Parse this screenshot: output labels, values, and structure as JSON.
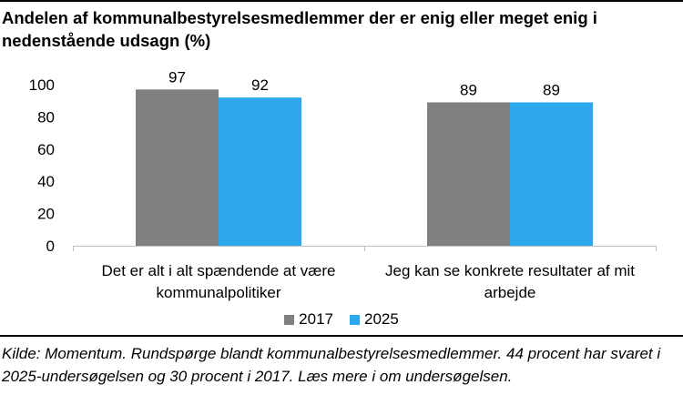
{
  "chart_data": {
    "type": "bar",
    "title": "Andelen af kommunalbestyrelsesmedlemmer der er enig eller meget enig i nedenstående udsagn (%)",
    "categories": [
      [
        "Det er alt i alt spændende at være",
        "kommunalpolitiker"
      ],
      [
        "Jeg kan se konkrete resultater af mit",
        "arbejde"
      ]
    ],
    "series": [
      {
        "name": "2017",
        "color": "#808080",
        "values": [
          97,
          89
        ]
      },
      {
        "name": "2025",
        "color": "#2ea8ec",
        "values": [
          92,
          89
        ]
      }
    ],
    "ylim": [
      0,
      100
    ],
    "yticks": [
      "0",
      "20",
      "40",
      "60",
      "80",
      "100"
    ],
    "grid": false,
    "legend_position": "bottom"
  },
  "source": "Kilde: Momentum. Rundspørge blandt kommunalbestyrelsesmedlemmer. 44 procent har svaret i 2025-undersøgelsen og 30 procent i 2017. Læs mere i om undersøgelsen."
}
